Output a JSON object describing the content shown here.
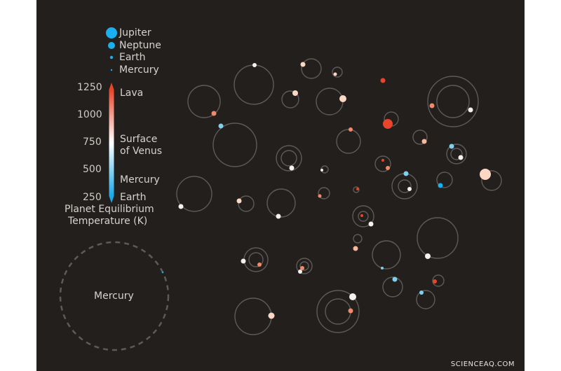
{
  "legend": {
    "sizes": [
      {
        "label": "Jupiter",
        "r": 8
      },
      {
        "label": "Neptune",
        "r": 5
      },
      {
        "label": "Earth",
        "r": 2.2
      },
      {
        "label": "Mercury",
        "r": 1.2
      }
    ],
    "color_scale": {
      "ticks": [
        "1250",
        "1000",
        "750",
        "500",
        "250"
      ],
      "tick_values": [
        1250,
        1000,
        750,
        500,
        250
      ],
      "markers": [
        {
          "label": "Lava",
          "value": 1250
        },
        {
          "label": "Surface\nof Venus",
          "value": 735
        },
        {
          "label": "Mercury",
          "value": 440
        },
        {
          "label": "Earth",
          "value": 255
        }
      ],
      "title_line1": "Planet Equilibrium",
      "title_line2": "Temperature (K)",
      "colors": {
        "hot": "#e8452a",
        "mid": "#ffffff",
        "cold": "#1aa8e8"
      }
    }
  },
  "reference": {
    "label": "Mercury"
  },
  "watermark": "SCIENCEAQ.COM",
  "colors": {
    "background": "#221f1d",
    "orbit": "#5e5a57",
    "text": "#d6d3cf"
  }
}
